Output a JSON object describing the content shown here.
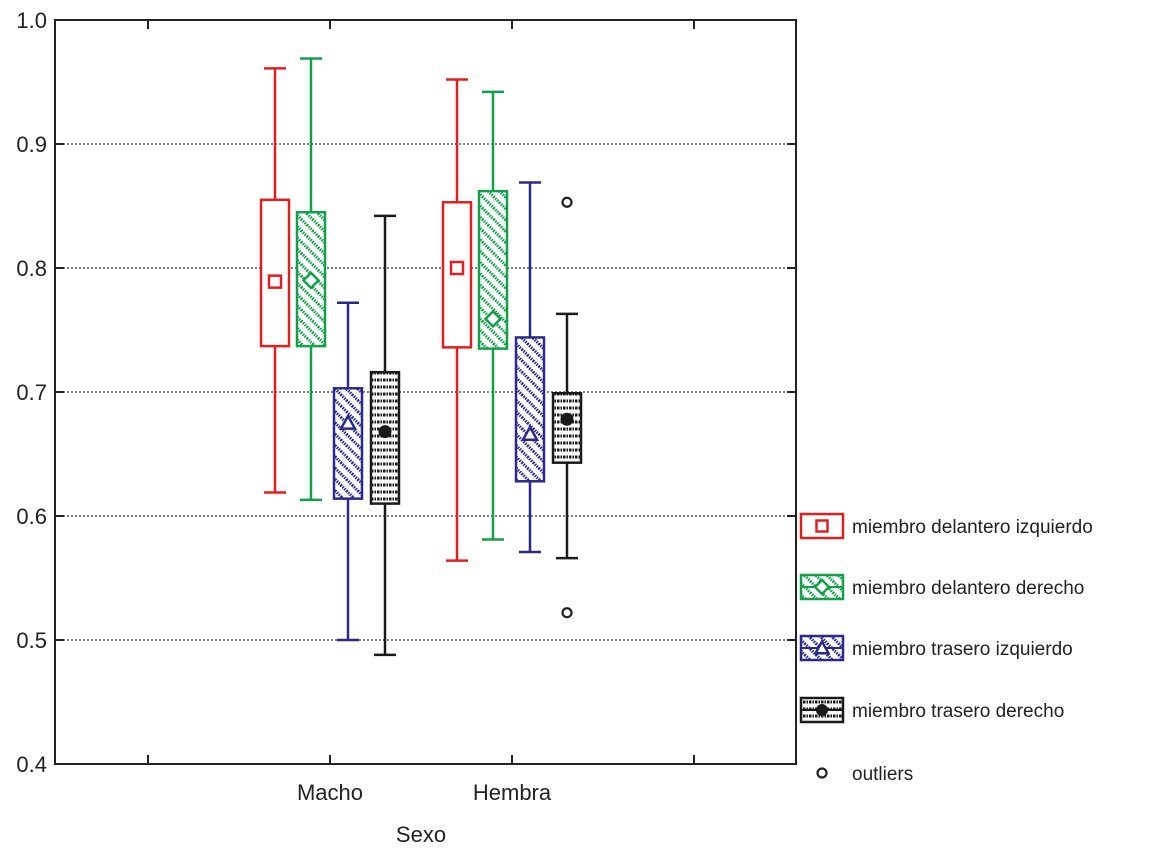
{
  "chart_data": {
    "type": "box",
    "xlabel": "Sexo",
    "ylabel": "",
    "ylim": [
      0.4,
      1.0
    ],
    "yticks": [
      "0.4",
      "0.5",
      "0.6",
      "0.7",
      "0.8",
      "0.9",
      "1.0"
    ],
    "grid": "horizontal dotted",
    "legend_position": "right",
    "categories": [
      "Macho",
      "Hembra"
    ],
    "series": [
      {
        "name": "miembro delantero izquierdo",
        "color": "#e02020",
        "marker": "square",
        "pattern": "none",
        "boxes": [
          {
            "min": 0.619,
            "q1": 0.737,
            "median": 0.789,
            "q3": 0.855,
            "max": 0.961,
            "outliers": []
          },
          {
            "min": 0.564,
            "q1": 0.736,
            "median": 0.8,
            "q3": 0.853,
            "max": 0.952,
            "outliers": []
          }
        ]
      },
      {
        "name": "miembro delantero derecho",
        "color": "#13a04a",
        "marker": "diamond",
        "pattern": "diagonal",
        "boxes": [
          {
            "min": 0.613,
            "q1": 0.737,
            "median": 0.79,
            "q3": 0.845,
            "max": 0.969,
            "outliers": []
          },
          {
            "min": 0.581,
            "q1": 0.735,
            "median": 0.759,
            "q3": 0.862,
            "max": 0.942,
            "outliers": []
          }
        ]
      },
      {
        "name": "miembro trasero izquierdo",
        "color": "#2a2a8c",
        "marker": "triangle",
        "pattern": "diagonal",
        "boxes": [
          {
            "min": 0.5,
            "q1": 0.614,
            "median": 0.675,
            "q3": 0.703,
            "max": 0.772,
            "outliers": []
          },
          {
            "min": 0.571,
            "q1": 0.628,
            "median": 0.666,
            "q3": 0.744,
            "max": 0.869,
            "outliers": []
          }
        ]
      },
      {
        "name": "miembro trasero derecho",
        "color": "#1a1a1a",
        "marker": "circle-filled",
        "pattern": "horizontal",
        "boxes": [
          {
            "min": 0.488,
            "q1": 0.61,
            "median": 0.668,
            "q3": 0.716,
            "max": 0.842,
            "outliers": []
          },
          {
            "min": 0.566,
            "q1": 0.643,
            "median": 0.678,
            "q3": 0.699,
            "max": 0.763,
            "outliers": [
              0.853,
              0.522
            ]
          }
        ]
      }
    ],
    "legend_extra": {
      "label": "outliers",
      "marker": "circle-open"
    }
  }
}
